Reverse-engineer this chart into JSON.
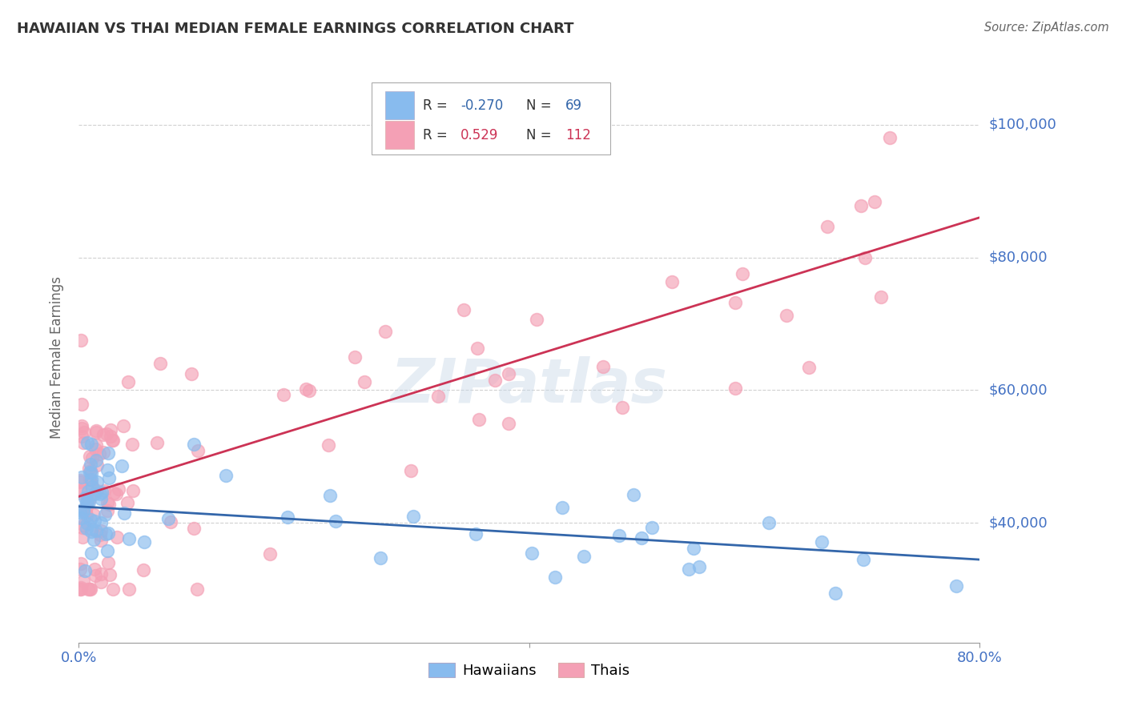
{
  "title": "HAWAIIAN VS THAI MEDIAN FEMALE EARNINGS CORRELATION CHART",
  "source": "Source: ZipAtlas.com",
  "ylabel": "Median Female Earnings",
  "yticks": [
    40000,
    60000,
    80000,
    100000
  ],
  "ytick_labels": [
    "$40,000",
    "$60,000",
    "$80,000",
    "$100,000"
  ],
  "hawaiian_color": "#88bbee",
  "hawaiian_edge_color": "#6699cc",
  "thai_color": "#f4a0b5",
  "thai_edge_color": "#dd7788",
  "trend_hawaiian_color": "#3366aa",
  "trend_thai_color": "#cc3355",
  "background_color": "#ffffff",
  "grid_color": "#cccccc",
  "title_color": "#333333",
  "axis_label_color": "#4472c4",
  "watermark": "ZIPatlas",
  "xmin": 0.0,
  "xmax": 0.8,
  "ymin": 22000,
  "ymax": 108000,
  "hawaiian_R": -0.27,
  "hawaiian_N": 69,
  "thai_R": 0.529,
  "thai_N": 112,
  "haw_trend_x0": 0.0,
  "haw_trend_y0": 42500,
  "haw_trend_x1": 0.8,
  "haw_trend_y1": 34500,
  "thai_trend_x0": 0.0,
  "thai_trend_y0": 44000,
  "thai_trend_x1": 0.8,
  "thai_trend_y1": 86000
}
